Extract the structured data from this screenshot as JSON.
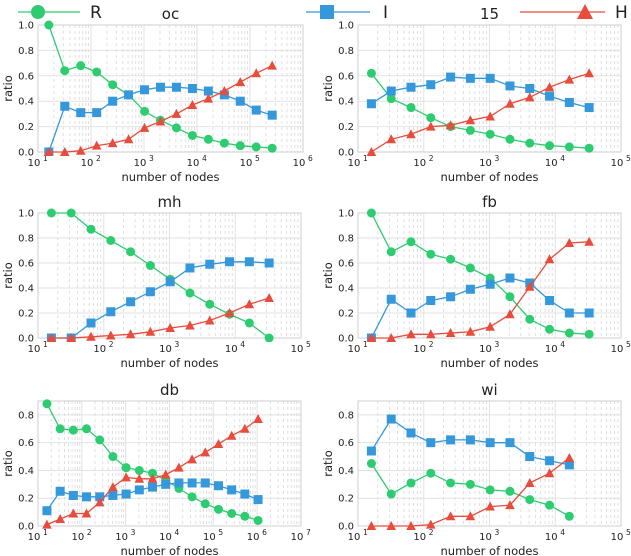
{
  "legend": [
    {
      "name": "R",
      "color": "#2ecc71",
      "marker": "circle"
    },
    {
      "name": "I",
      "color": "#3498db",
      "marker": "square"
    },
    {
      "name": "H",
      "color": "#e74c3c",
      "marker": "triangle"
    }
  ],
  "chart_data": [
    {
      "type": "line",
      "title": "oc",
      "xlabel": "number of nodes",
      "ylabel": "ratio",
      "xscale": "log",
      "xlim": [
        10,
        1000000
      ],
      "ylim": [
        0,
        1.0
      ],
      "yticks": [
        "0.0",
        "0.2",
        "0.4",
        "0.6",
        "0.8",
        "1.0"
      ],
      "xticks": [
        {
          "base": "10",
          "exp": "1"
        },
        {
          "base": "10",
          "exp": "2"
        },
        {
          "base": "10",
          "exp": "3"
        },
        {
          "base": "10",
          "exp": "4"
        },
        {
          "base": "10",
          "exp": "5"
        },
        {
          "base": "10",
          "exp": "6"
        }
      ],
      "x": [
        16,
        32,
        64,
        128,
        256,
        512,
        1024,
        2048,
        4096,
        8192,
        16384,
        32768,
        65536,
        131072,
        262144
      ],
      "series": [
        {
          "name": "R",
          "values": [
            1.0,
            0.64,
            0.68,
            0.63,
            0.53,
            0.45,
            0.32,
            0.25,
            0.19,
            0.13,
            0.1,
            0.07,
            0.05,
            0.04,
            0.03
          ]
        },
        {
          "name": "I",
          "values": [
            0.0,
            0.36,
            0.31,
            0.31,
            0.4,
            0.45,
            0.49,
            0.51,
            0.51,
            0.5,
            0.48,
            0.45,
            0.4,
            0.33,
            0.29
          ]
        },
        {
          "name": "H",
          "values": [
            0.0,
            0.0,
            0.01,
            0.05,
            0.07,
            0.1,
            0.19,
            0.24,
            0.3,
            0.37,
            0.42,
            0.48,
            0.55,
            0.62,
            0.68
          ]
        }
      ]
    },
    {
      "type": "line",
      "title": "15",
      "xlabel": "number of nodes",
      "ylabel": "ratio",
      "xscale": "log",
      "xlim": [
        10,
        100000
      ],
      "ylim": [
        0,
        1.0
      ],
      "yticks": [
        "0.0",
        "0.2",
        "0.4",
        "0.6",
        "0.8",
        "1.0"
      ],
      "xticks": [
        {
          "base": "10",
          "exp": "1"
        },
        {
          "base": "10",
          "exp": "2"
        },
        {
          "base": "10",
          "exp": "3"
        },
        {
          "base": "10",
          "exp": "4"
        },
        {
          "base": "10",
          "exp": "5"
        }
      ],
      "x": [
        16,
        32,
        64,
        128,
        256,
        512,
        1024,
        2048,
        4096,
        8192,
        16384,
        32768
      ],
      "series": [
        {
          "name": "R",
          "values": [
            0.62,
            0.42,
            0.35,
            0.27,
            0.2,
            0.17,
            0.14,
            0.1,
            0.07,
            0.05,
            0.04,
            0.03
          ]
        },
        {
          "name": "I",
          "values": [
            0.38,
            0.48,
            0.51,
            0.53,
            0.59,
            0.58,
            0.58,
            0.52,
            0.5,
            0.44,
            0.39,
            0.35
          ]
        },
        {
          "name": "H",
          "values": [
            0.0,
            0.1,
            0.14,
            0.2,
            0.21,
            0.25,
            0.28,
            0.38,
            0.43,
            0.51,
            0.57,
            0.62
          ]
        }
      ]
    },
    {
      "type": "line",
      "title": "mh",
      "xlabel": "number of nodes",
      "ylabel": "ratio",
      "xscale": "log",
      "xlim": [
        10,
        100000
      ],
      "ylim": [
        0,
        1.0
      ],
      "yticks": [
        "0.0",
        "0.2",
        "0.4",
        "0.6",
        "0.8",
        "1.0"
      ],
      "xticks": [
        {
          "base": "10",
          "exp": "1"
        },
        {
          "base": "10",
          "exp": "2"
        },
        {
          "base": "10",
          "exp": "3"
        },
        {
          "base": "10",
          "exp": "4"
        },
        {
          "base": "10",
          "exp": "5"
        }
      ],
      "x": [
        16,
        32,
        64,
        128,
        256,
        512,
        1024,
        2048,
        4096,
        8192,
        16384,
        32768
      ],
      "series": [
        {
          "name": "R",
          "values": [
            1.0,
            1.0,
            0.87,
            0.78,
            0.69,
            0.58,
            0.47,
            0.36,
            0.27,
            0.19,
            0.12,
            0.0
          ]
        },
        {
          "name": "I",
          "values": [
            0.0,
            0.0,
            0.12,
            0.21,
            0.29,
            0.37,
            0.45,
            0.56,
            0.59,
            0.61,
            0.61,
            0.6
          ]
        },
        {
          "name": "H",
          "values": [
            0.0,
            0.0,
            0.01,
            0.02,
            0.03,
            0.05,
            0.08,
            0.1,
            0.14,
            0.2,
            0.27,
            0.32
          ]
        }
      ]
    },
    {
      "type": "line",
      "title": "fb",
      "xlabel": "number of nodes",
      "ylabel": "ratio",
      "xscale": "log",
      "xlim": [
        10,
        100000
      ],
      "ylim": [
        0,
        1.0
      ],
      "yticks": [
        "0.0",
        "0.2",
        "0.4",
        "0.6",
        "0.8",
        "1.0"
      ],
      "xticks": [
        {
          "base": "10",
          "exp": "1"
        },
        {
          "base": "10",
          "exp": "2"
        },
        {
          "base": "10",
          "exp": "3"
        },
        {
          "base": "10",
          "exp": "4"
        },
        {
          "base": "10",
          "exp": "5"
        }
      ],
      "x": [
        16,
        32,
        64,
        128,
        256,
        512,
        1024,
        2048,
        4096,
        8192,
        16384,
        32768
      ],
      "series": [
        {
          "name": "R",
          "values": [
            1.0,
            0.69,
            0.77,
            0.67,
            0.63,
            0.56,
            0.48,
            0.33,
            0.15,
            0.07,
            0.04,
            0.03
          ]
        },
        {
          "name": "I",
          "values": [
            0.0,
            0.31,
            0.2,
            0.3,
            0.33,
            0.39,
            0.43,
            0.48,
            0.44,
            0.3,
            0.2,
            0.2
          ]
        },
        {
          "name": "H",
          "values": [
            0.0,
            0.0,
            0.03,
            0.03,
            0.04,
            0.05,
            0.09,
            0.19,
            0.41,
            0.63,
            0.76,
            0.77
          ]
        }
      ]
    },
    {
      "type": "line",
      "title": "db",
      "xlabel": "number of nodes",
      "ylabel": "ratio",
      "xscale": "log",
      "xlim": [
        10,
        10000000
      ],
      "ylim": [
        0,
        0.9
      ],
      "yticks": [
        "0.0",
        "0.2",
        "0.4",
        "0.6",
        "0.8"
      ],
      "xticks": [
        {
          "base": "10",
          "exp": "1"
        },
        {
          "base": "10",
          "exp": "2"
        },
        {
          "base": "10",
          "exp": "3"
        },
        {
          "base": "10",
          "exp": "4"
        },
        {
          "base": "10",
          "exp": "5"
        },
        {
          "base": "10",
          "exp": "6"
        },
        {
          "base": "10",
          "exp": "7"
        }
      ],
      "x": [
        16,
        32,
        64,
        128,
        256,
        512,
        1024,
        2048,
        4096,
        8192,
        16384,
        32768,
        65536,
        131072,
        262144,
        524288,
        1048576
      ],
      "series": [
        {
          "name": "R",
          "values": [
            0.88,
            0.7,
            0.69,
            0.7,
            0.62,
            0.5,
            0.42,
            0.4,
            0.38,
            0.33,
            0.27,
            0.21,
            0.16,
            0.12,
            0.09,
            0.07,
            0.04
          ]
        },
        {
          "name": "I",
          "values": [
            0.11,
            0.25,
            0.22,
            0.21,
            0.21,
            0.22,
            0.23,
            0.26,
            0.28,
            0.3,
            0.31,
            0.31,
            0.31,
            0.29,
            0.26,
            0.23,
            0.19
          ]
        },
        {
          "name": "H",
          "values": [
            0.01,
            0.05,
            0.09,
            0.09,
            0.17,
            0.28,
            0.35,
            0.34,
            0.34,
            0.37,
            0.42,
            0.48,
            0.53,
            0.59,
            0.65,
            0.7,
            0.77
          ]
        }
      ]
    },
    {
      "type": "line",
      "title": "wi",
      "xlabel": "number of nodes",
      "ylabel": "ratio",
      "xscale": "log",
      "xlim": [
        10,
        100000
      ],
      "ylim": [
        0,
        0.9
      ],
      "yticks": [
        "0.0",
        "0.2",
        "0.4",
        "0.6",
        "0.8"
      ],
      "xticks": [
        {
          "base": "10",
          "exp": "1"
        },
        {
          "base": "10",
          "exp": "2"
        },
        {
          "base": "10",
          "exp": "3"
        },
        {
          "base": "10",
          "exp": "4"
        },
        {
          "base": "10",
          "exp": "5"
        }
      ],
      "x": [
        16,
        32,
        64,
        128,
        256,
        512,
        1024,
        2048,
        4096,
        8192,
        16384
      ],
      "series": [
        {
          "name": "R",
          "values": [
            0.45,
            0.23,
            0.31,
            0.38,
            0.31,
            0.3,
            0.26,
            0.25,
            0.19,
            0.15,
            0.07
          ]
        },
        {
          "name": "I",
          "values": [
            0.54,
            0.77,
            0.67,
            0.6,
            0.62,
            0.62,
            0.6,
            0.6,
            0.5,
            0.47,
            0.44
          ]
        },
        {
          "name": "H",
          "values": [
            0.0,
            0.0,
            0.0,
            0.01,
            0.07,
            0.07,
            0.14,
            0.15,
            0.31,
            0.38,
            0.49
          ]
        }
      ]
    }
  ]
}
